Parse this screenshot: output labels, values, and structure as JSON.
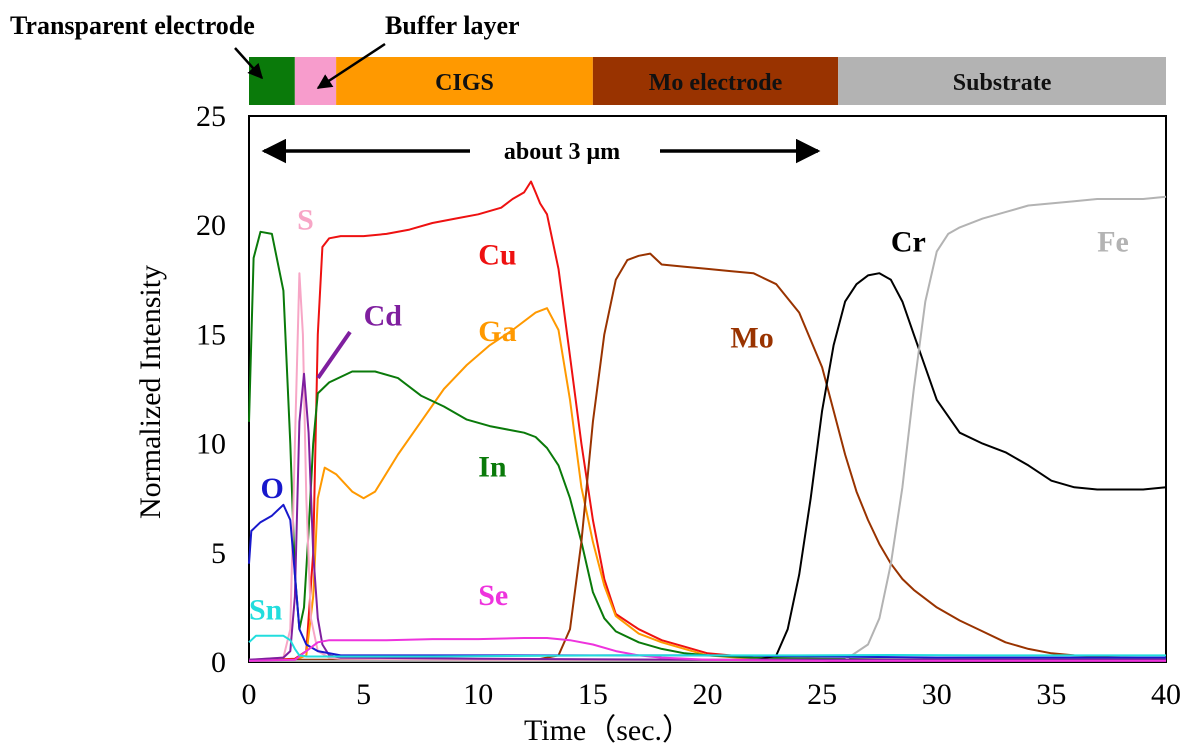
{
  "chart_data": {
    "type": "line",
    "title": "",
    "xlabel": "Time（sec.）",
    "ylabel": "Normalized Intensity",
    "xlim": [
      0,
      40
    ],
    "ylim": [
      0,
      25
    ],
    "x_ticks": [
      "0",
      "5",
      "10",
      "15",
      "20",
      "25",
      "30",
      "35",
      "40"
    ],
    "y_ticks": [
      "0",
      "5",
      "10",
      "15",
      "20",
      "25"
    ],
    "grid": false,
    "layers": [
      {
        "label": "",
        "x_start": 0,
        "x_end": 2.0,
        "color": "#0a7a0a"
      },
      {
        "label": "",
        "x_start": 2.0,
        "x_end": 3.8,
        "color": "#f79ccc"
      },
      {
        "label": "CIGS",
        "x_start": 3.8,
        "x_end": 15.0,
        "color": "#ff9900"
      },
      {
        "label": "Mo electrode",
        "x_start": 15.0,
        "x_end": 25.7,
        "color": "#993300"
      },
      {
        "label": "Substrate",
        "x_start": 25.7,
        "x_end": 40,
        "color": "#b3b3b3"
      }
    ],
    "callouts": {
      "transparent_electrode": "Transparent electrode",
      "buffer_layer": "Buffer layer"
    },
    "annotation": "about 3 μm",
    "series": [
      {
        "name": "Cu",
        "color": "#ee1111",
        "label_at": [
          10,
          18.2
        ],
        "x": [
          0,
          1,
          2,
          2.5,
          2.8,
          3.0,
          3.2,
          3.5,
          4,
          5,
          6,
          7,
          8,
          9,
          10,
          11,
          11.5,
          12,
          12.3,
          12.5,
          12.7,
          13,
          13.5,
          14,
          14.5,
          15,
          15.5,
          16,
          17,
          18,
          19,
          20,
          21,
          22,
          23,
          25,
          30,
          35,
          40
        ],
        "values": [
          0.1,
          0.1,
          0.15,
          0.5,
          5,
          15,
          19,
          19.4,
          19.5,
          19.5,
          19.6,
          19.8,
          20.1,
          20.3,
          20.5,
          20.8,
          21.2,
          21.5,
          22.0,
          21.5,
          21.0,
          20.5,
          18.0,
          14.0,
          10.0,
          6.5,
          3.8,
          2.2,
          1.5,
          1.0,
          0.7,
          0.4,
          0.3,
          0.15,
          0.1,
          0.1,
          0.1,
          0.1,
          0.1
        ]
      },
      {
        "name": "Ga",
        "color": "#ff9900",
        "label_at": [
          10,
          14.7
        ],
        "x": [
          0,
          1,
          2,
          2.5,
          2.8,
          3.0,
          3.3,
          3.8,
          4.5,
          5.0,
          5.5,
          6.5,
          7.5,
          8.5,
          9.5,
          10.5,
          11.5,
          12.5,
          13.0,
          13.5,
          14.0,
          14.5,
          15.0,
          15.5,
          16,
          17,
          18,
          19,
          20,
          22,
          25,
          30,
          35,
          40
        ],
        "values": [
          0.1,
          0.1,
          0.1,
          0.3,
          3,
          7.5,
          8.9,
          8.6,
          7.8,
          7.5,
          7.8,
          9.5,
          11.0,
          12.5,
          13.6,
          14.5,
          15.2,
          16.0,
          16.2,
          15.2,
          12.0,
          8.0,
          5.5,
          3.5,
          2.1,
          1.3,
          0.9,
          0.6,
          0.3,
          0.15,
          0.1,
          0.1,
          0.1,
          0.1
        ]
      },
      {
        "name": "In",
        "color": "#0a7a0a",
        "label_at": [
          10,
          8.5
        ],
        "x": [
          0,
          0.2,
          0.5,
          1.0,
          1.5,
          1.8,
          2.0,
          2.2,
          2.4,
          2.6,
          2.8,
          3.0,
          3.5,
          4.5,
          5.5,
          6.5,
          7.5,
          8.5,
          9.5,
          10.5,
          11.5,
          12.0,
          12.5,
          13.0,
          13.5,
          14.0,
          14.5,
          15.0,
          15.5,
          16.0,
          17,
          18,
          19,
          20,
          22,
          25,
          30,
          35,
          40
        ],
        "values": [
          11,
          18.5,
          19.7,
          19.6,
          17.0,
          10.0,
          4.0,
          1.5,
          2.5,
          6.0,
          10.0,
          12.3,
          12.8,
          13.3,
          13.3,
          13.0,
          12.2,
          11.7,
          11.1,
          10.8,
          10.6,
          10.5,
          10.3,
          9.8,
          9.0,
          7.5,
          5.5,
          3.2,
          2.0,
          1.4,
          0.9,
          0.6,
          0.4,
          0.3,
          0.2,
          0.15,
          0.1,
          0.1,
          0.1
        ]
      },
      {
        "name": "Mo",
        "color": "#993300",
        "label_at": [
          21,
          14.4
        ],
        "x": [
          0,
          10,
          12.5,
          13.5,
          14.0,
          14.5,
          15.0,
          15.5,
          16.0,
          16.5,
          17.0,
          17.5,
          18.0,
          19.0,
          20.0,
          21.0,
          22.0,
          23.0,
          24.0,
          25.0,
          25.5,
          26.0,
          26.5,
          27.0,
          27.5,
          28.0,
          28.5,
          29.0,
          30.0,
          31.0,
          32.0,
          33.0,
          34.0,
          35.0,
          36,
          38,
          40
        ],
        "values": [
          0.1,
          0.1,
          0.1,
          0.3,
          1.5,
          5.5,
          11.0,
          15.0,
          17.5,
          18.4,
          18.6,
          18.7,
          18.2,
          18.1,
          18.0,
          17.9,
          17.8,
          17.3,
          16.0,
          13.5,
          11.5,
          9.5,
          7.8,
          6.5,
          5.4,
          4.5,
          3.8,
          3.3,
          2.5,
          1.9,
          1.4,
          0.9,
          0.6,
          0.4,
          0.3,
          0.2,
          0.15
        ]
      },
      {
        "name": "Cr",
        "color": "#000000",
        "label_at": [
          28,
          18.8
        ],
        "x": [
          0,
          20,
          22.0,
          23.0,
          23.5,
          24.0,
          24.5,
          25.0,
          25.5,
          26.0,
          26.5,
          27.0,
          27.5,
          28.0,
          28.5,
          29.0,
          29.5,
          30.0,
          31.0,
          32.0,
          33.0,
          34.0,
          35.0,
          36.0,
          37.0,
          38.0,
          39.0,
          40.0
        ],
        "values": [
          0.05,
          0.05,
          0.05,
          0.3,
          1.5,
          4.0,
          7.5,
          11.5,
          14.5,
          16.5,
          17.3,
          17.7,
          17.8,
          17.5,
          16.5,
          15.0,
          13.5,
          12.0,
          10.5,
          10.0,
          9.6,
          9.0,
          8.3,
          8.0,
          7.9,
          7.9,
          7.9,
          8.0
        ]
      },
      {
        "name": "Fe",
        "color": "#b3b3b3",
        "label_at": [
          37,
          18.8
        ],
        "x": [
          0,
          25,
          26.0,
          27.0,
          27.5,
          28.0,
          28.5,
          29.0,
          29.5,
          30.0,
          30.5,
          31.0,
          32.0,
          33.0,
          34.0,
          35.0,
          36.0,
          37.0,
          38.0,
          39.0,
          40.0
        ],
        "values": [
          0.05,
          0.05,
          0.1,
          0.8,
          2.0,
          4.5,
          8.0,
          12.5,
          16.5,
          18.8,
          19.6,
          19.9,
          20.3,
          20.6,
          20.9,
          21.0,
          21.1,
          21.2,
          21.2,
          21.2,
          21.3
        ]
      },
      {
        "name": "S",
        "color": "#f7a6c6",
        "label_at": [
          2.1,
          19.8
        ],
        "x": [
          0,
          1.5,
          1.8,
          2.0,
          2.2,
          2.35,
          2.5,
          2.7,
          3.0,
          3.5,
          4,
          10,
          20,
          30,
          40
        ],
        "values": [
          0.1,
          0.2,
          1.5,
          10.0,
          17.8,
          15.0,
          7.5,
          2.0,
          0.5,
          0.2,
          0.15,
          0.1,
          0.1,
          0.1,
          0.1
        ]
      },
      {
        "name": "Cd",
        "color": "#7f1f9f",
        "label_at": [
          5.0,
          15.4
        ],
        "x": [
          0,
          1.5,
          1.8,
          2.0,
          2.2,
          2.4,
          2.6,
          2.8,
          3.0,
          3.2,
          3.5,
          4,
          10,
          20,
          30,
          40
        ],
        "values": [
          0.1,
          0.2,
          0.5,
          3.0,
          11.0,
          13.2,
          10.5,
          5.0,
          2.0,
          0.8,
          0.3,
          0.2,
          0.15,
          0.1,
          0.1,
          0.1
        ]
      },
      {
        "name": "O",
        "color": "#1818cc",
        "label_at": [
          0.5,
          7.5
        ],
        "x": [
          0,
          0.1,
          0.5,
          1.0,
          1.5,
          1.8,
          2.0,
          2.2,
          2.5,
          3.0,
          4,
          10,
          20,
          30,
          40
        ],
        "values": [
          4.5,
          6.0,
          6.4,
          6.7,
          7.2,
          6.5,
          4.0,
          1.5,
          0.8,
          0.5,
          0.3,
          0.3,
          0.3,
          0.2,
          0.2
        ]
      },
      {
        "name": "Se",
        "color": "#ee33dd",
        "label_at": [
          10,
          2.6
        ],
        "x": [
          0,
          2.0,
          2.5,
          3.0,
          3.5,
          4.0,
          6,
          8,
          10,
          12,
          13,
          14,
          15,
          16,
          17,
          18,
          20,
          25,
          30,
          40
        ],
        "values": [
          0.05,
          0.1,
          0.5,
          0.9,
          1.0,
          1.0,
          1.0,
          1.05,
          1.05,
          1.1,
          1.1,
          1.0,
          0.8,
          0.5,
          0.3,
          0.2,
          0.1,
          0.05,
          0.05,
          0.05
        ]
      },
      {
        "name": "Sn",
        "color": "#22dddd",
        "label_at": [
          0,
          1.95
        ],
        "x": [
          0,
          0.3,
          1.0,
          1.5,
          1.8,
          2.0,
          2.2,
          2.5,
          3.0,
          4,
          8,
          12,
          16,
          20,
          24,
          28,
          32,
          36,
          40
        ],
        "values": [
          0.9,
          1.2,
          1.2,
          1.2,
          1.0,
          0.6,
          0.3,
          0.25,
          0.25,
          0.25,
          0.25,
          0.28,
          0.3,
          0.3,
          0.3,
          0.32,
          0.3,
          0.3,
          0.3
        ]
      }
    ]
  }
}
